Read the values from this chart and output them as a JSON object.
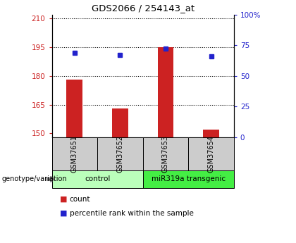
{
  "title": "GDS2066 / 254143_at",
  "samples": [
    "GSM37651",
    "GSM37652",
    "GSM37653",
    "GSM37654"
  ],
  "counts": [
    178,
    163,
    195,
    152
  ],
  "percentiles": [
    69,
    67,
    72,
    66
  ],
  "ylim_left": [
    148,
    212
  ],
  "ylim_right": [
    0,
    100
  ],
  "yticks_left": [
    150,
    165,
    180,
    195,
    210
  ],
  "yticks_right": [
    0,
    25,
    50,
    75,
    100
  ],
  "ytick_labels_right": [
    "0",
    "25",
    "50",
    "75",
    "100%"
  ],
  "bar_color": "#cc2222",
  "dot_color": "#2222cc",
  "groups": [
    {
      "label": "control",
      "samples": [
        0,
        1
      ],
      "color": "#bbffbb"
    },
    {
      "label": "miR319a transgenic",
      "samples": [
        2,
        3
      ],
      "color": "#44ee44"
    }
  ],
  "group_label_prefix": "genotype/variation",
  "legend_count_label": "count",
  "legend_pct_label": "percentile rank within the sample",
  "sample_box_color": "#cccccc",
  "bar_bottom": 148
}
